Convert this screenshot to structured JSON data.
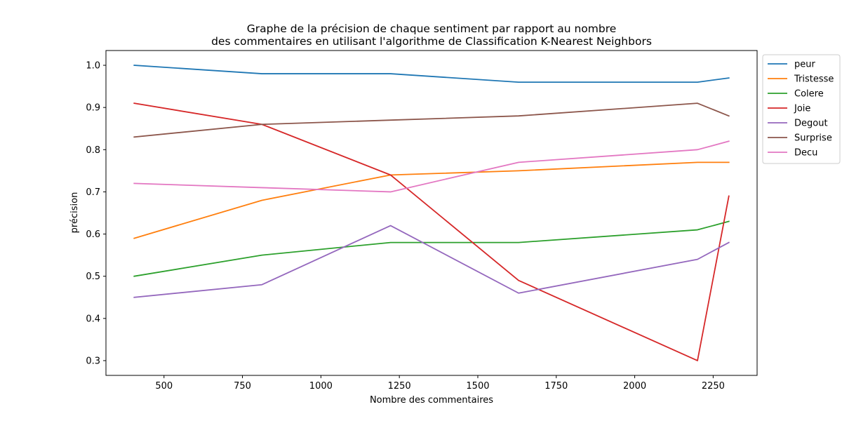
{
  "chart_data": {
    "type": "line",
    "title_lines": [
      "Graphe de la précision de chaque sentiment par rapport au nombre",
      "des commentaires en utilisant l'algorithme de Classification K-Nearest Neighbors"
    ],
    "xlabel": "Nombre des commentaires",
    "ylabel": "précision",
    "xlim": [
      315,
      2390
    ],
    "ylim": [
      0.265,
      1.035
    ],
    "xticks": [
      500,
      750,
      1000,
      1250,
      1500,
      1750,
      2000,
      2250
    ],
    "yticks": [
      0.3,
      0.4,
      0.5,
      0.6,
      0.7,
      0.8,
      0.9,
      1.0
    ],
    "grid": false,
    "legend_position": "outside-top-right",
    "x": [
      405,
      812,
      1222,
      1630,
      2200,
      2300
    ],
    "series": [
      {
        "name": "peur",
        "color": "#1f77b4",
        "values": [
          1.0,
          0.98,
          0.98,
          0.96,
          0.96,
          0.97
        ]
      },
      {
        "name": "Tristesse",
        "color": "#ff7f0e",
        "values": [
          0.59,
          0.68,
          0.74,
          0.75,
          0.77,
          0.77
        ]
      },
      {
        "name": "Colere",
        "color": "#2ca02c",
        "values": [
          0.5,
          0.55,
          0.58,
          0.58,
          0.61,
          0.63
        ]
      },
      {
        "name": "Joie",
        "color": "#d62728",
        "values": [
          0.91,
          0.86,
          0.74,
          0.49,
          0.3,
          0.69
        ]
      },
      {
        "name": "Degout",
        "color": "#9467bd",
        "values": [
          0.45,
          0.48,
          0.62,
          0.46,
          0.54,
          0.58
        ]
      },
      {
        "name": "Surprise",
        "color": "#8c564b",
        "values": [
          0.83,
          0.86,
          0.87,
          0.88,
          0.91,
          0.88
        ]
      },
      {
        "name": "Decu",
        "color": "#e377c2",
        "values": [
          0.72,
          0.71,
          0.7,
          0.77,
          0.8,
          0.82
        ]
      }
    ]
  }
}
